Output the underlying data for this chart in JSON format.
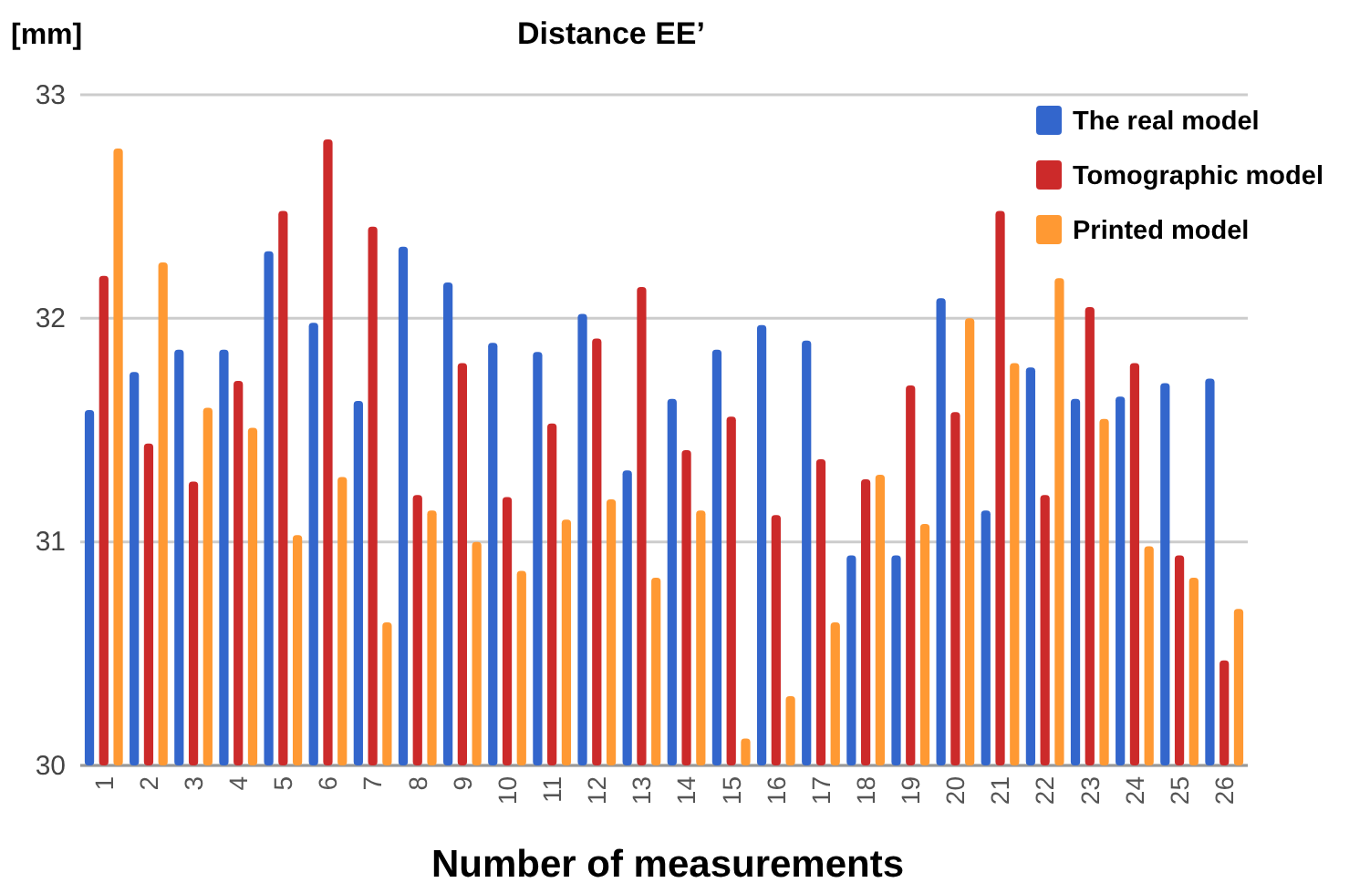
{
  "chart_data": {
    "type": "bar",
    "title": "Distance EE’",
    "ylabel": "[mm]",
    "xlabel": "Number of measurements",
    "categories": [
      "1",
      "2",
      "3",
      "4",
      "5",
      "6",
      "7",
      "8",
      "9",
      "10",
      "11",
      "12",
      "13",
      "14",
      "15",
      "16",
      "17",
      "18",
      "19",
      "20",
      "21",
      "22",
      "23",
      "24",
      "25",
      "26"
    ],
    "series": [
      {
        "name": "The real model",
        "color": "#3366cc",
        "values": [
          31.59,
          31.76,
          31.86,
          31.86,
          32.3,
          31.98,
          31.63,
          32.32,
          32.16,
          31.89,
          31.85,
          32.02,
          31.32,
          31.64,
          31.86,
          31.97,
          31.9,
          30.94,
          30.94,
          32.09,
          31.14,
          31.78,
          31.64,
          31.65,
          31.71,
          31.73
        ]
      },
      {
        "name": "Tomographic model",
        "color": "#cc2a2a",
        "values": [
          32.19,
          31.44,
          31.27,
          31.72,
          32.48,
          32.8,
          32.41,
          31.21,
          31.8,
          31.2,
          31.53,
          31.91,
          32.14,
          31.41,
          31.56,
          31.12,
          31.37,
          31.28,
          31.7,
          31.58,
          32.48,
          31.21,
          32.05,
          31.8,
          30.94,
          30.47
        ]
      },
      {
        "name": "Printed model",
        "color": "#ff9933",
        "values": [
          32.76,
          32.25,
          31.6,
          31.51,
          31.03,
          31.29,
          30.64,
          31.14,
          31.0,
          30.87,
          31.1,
          31.19,
          30.84,
          31.14,
          30.12,
          30.31,
          30.64,
          31.3,
          31.08,
          32.0,
          31.8,
          32.18,
          31.55,
          30.98,
          30.84,
          30.7
        ]
      }
    ],
    "ylim": [
      30,
      33
    ],
    "yticks": [
      30,
      31,
      32,
      33
    ],
    "grid": "y",
    "legend": "top right"
  }
}
